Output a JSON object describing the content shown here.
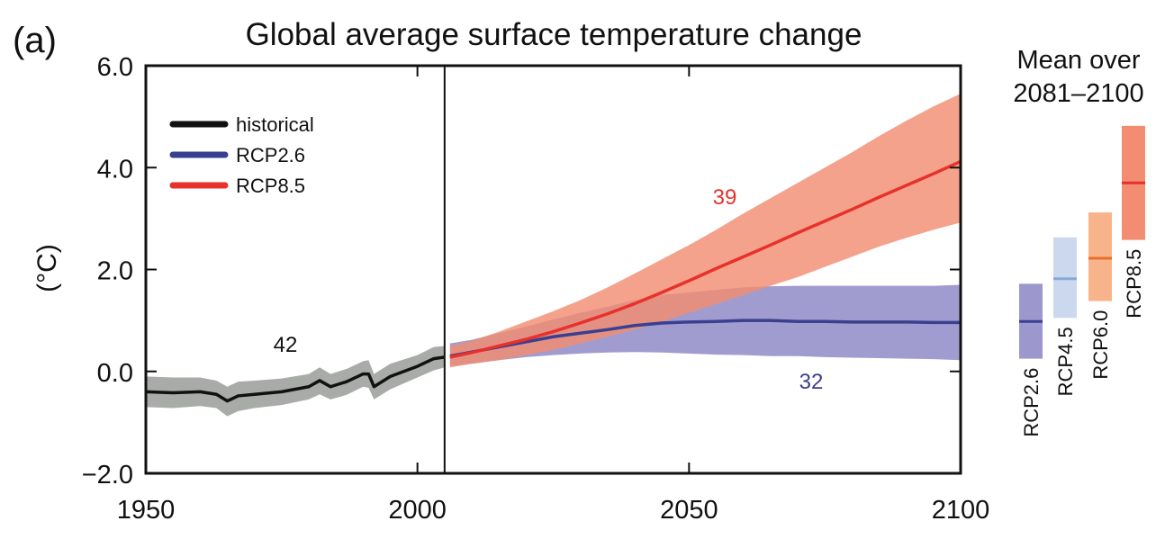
{
  "panel_label": "(a)",
  "chart_data": {
    "type": "line",
    "title": "Global average surface temperature change",
    "ylabel": "(°C)",
    "xlabel": "",
    "xlim": [
      1950,
      2100
    ],
    "ylim": [
      -2.0,
      6.0
    ],
    "x_ticks": [
      1950,
      2000,
      2050,
      2100
    ],
    "x_tick_labels": [
      "1950",
      "2000",
      "2050",
      "2100"
    ],
    "y_ticks": [
      -2.0,
      0.0,
      2.0,
      4.0,
      6.0
    ],
    "y_tick_labels": [
      "−2.0",
      "0.0",
      "2.0",
      "4.0",
      "6.0"
    ],
    "divider_year": 2005,
    "grid": false,
    "legend": {
      "placement": "top-left",
      "entries": [
        {
          "label": "historical",
          "color": "#111111"
        },
        {
          "label": "RCP2.6",
          "color": "#3b3f8f"
        },
        {
          "label": "RCP8.5",
          "color": "#e8312a"
        }
      ]
    },
    "series": [
      {
        "name": "historical",
        "color": "#111111",
        "band_color": "#a9aba9",
        "count_label": "42",
        "x": [
          1950,
          1955,
          1960,
          1963,
          1965,
          1967,
          1970,
          1975,
          1980,
          1982,
          1984,
          1987,
          1990,
          1991,
          1992,
          1995,
          2000,
          2003,
          2005
        ],
        "y": [
          -0.4,
          -0.42,
          -0.4,
          -0.45,
          -0.58,
          -0.48,
          -0.45,
          -0.4,
          -0.3,
          -0.18,
          -0.3,
          -0.2,
          -0.05,
          -0.05,
          -0.3,
          -0.1,
          0.1,
          0.25,
          0.28
        ],
        "lower": [
          -0.7,
          -0.72,
          -0.68,
          -0.72,
          -0.88,
          -0.78,
          -0.72,
          -0.66,
          -0.55,
          -0.45,
          -0.55,
          -0.46,
          -0.3,
          -0.32,
          -0.55,
          -0.35,
          -0.12,
          0.02,
          0.08
        ],
        "upper": [
          -0.1,
          -0.12,
          -0.12,
          -0.18,
          -0.3,
          -0.2,
          -0.18,
          -0.14,
          -0.05,
          0.08,
          -0.05,
          0.05,
          0.2,
          0.22,
          -0.05,
          0.15,
          0.32,
          0.48,
          0.5
        ]
      },
      {
        "name": "RCP2.6",
        "color": "#3b3f8f",
        "band_color": "#8c86c4",
        "count_label": "32",
        "x": [
          2006,
          2010,
          2015,
          2020,
          2025,
          2030,
          2035,
          2040,
          2045,
          2050,
          2055,
          2060,
          2065,
          2070,
          2075,
          2080,
          2085,
          2090,
          2095,
          2100
        ],
        "y": [
          0.3,
          0.38,
          0.48,
          0.58,
          0.68,
          0.75,
          0.82,
          0.9,
          0.95,
          0.97,
          0.98,
          1.0,
          1.0,
          0.98,
          0.98,
          0.97,
          0.97,
          0.97,
          0.96,
          0.96
        ],
        "lower": [
          0.1,
          0.15,
          0.22,
          0.28,
          0.32,
          0.35,
          0.37,
          0.38,
          0.37,
          0.35,
          0.33,
          0.32,
          0.3,
          0.3,
          0.28,
          0.27,
          0.26,
          0.25,
          0.24,
          0.22
        ],
        "upper": [
          0.55,
          0.62,
          0.75,
          0.88,
          1.02,
          1.15,
          1.27,
          1.4,
          1.5,
          1.55,
          1.6,
          1.65,
          1.67,
          1.68,
          1.68,
          1.68,
          1.68,
          1.68,
          1.68,
          1.7
        ]
      },
      {
        "name": "RCP8.5",
        "color": "#e8312a",
        "band_color": "#f28d72",
        "count_label": "39",
        "x": [
          2006,
          2010,
          2015,
          2020,
          2025,
          2030,
          2035,
          2040,
          2045,
          2050,
          2055,
          2060,
          2065,
          2070,
          2075,
          2080,
          2085,
          2090,
          2095,
          2100
        ],
        "y": [
          0.28,
          0.37,
          0.5,
          0.63,
          0.78,
          0.95,
          1.13,
          1.33,
          1.55,
          1.78,
          2.02,
          2.25,
          2.48,
          2.72,
          2.95,
          3.18,
          3.42,
          3.65,
          3.88,
          4.12
        ],
        "lower": [
          0.08,
          0.15,
          0.22,
          0.32,
          0.42,
          0.55,
          0.68,
          0.82,
          0.98,
          1.15,
          1.32,
          1.5,
          1.68,
          1.85,
          2.05,
          2.25,
          2.45,
          2.62,
          2.78,
          2.92
        ],
        "upper": [
          0.5,
          0.6,
          0.78,
          0.98,
          1.18,
          1.4,
          1.65,
          1.92,
          2.2,
          2.48,
          2.78,
          3.1,
          3.4,
          3.7,
          4.0,
          4.3,
          4.62,
          4.92,
          5.2,
          5.45
        ]
      }
    ],
    "side_panel": {
      "title_line1": "Mean over",
      "title_line2": "2081–2100",
      "bars": [
        {
          "label": "RCP2.6",
          "mean": 0.98,
          "low": 0.25,
          "high": 1.72,
          "mean_color": "#3b3f8f",
          "fill_color": "#9c97cc"
        },
        {
          "label": "RCP4.5",
          "mean": 1.82,
          "low": 1.05,
          "high": 2.63,
          "mean_color": "#86a9d6",
          "fill_color": "#cbd8ee"
        },
        {
          "label": "RCP6.0",
          "mean": 2.22,
          "low": 1.38,
          "high": 3.12,
          "mean_color": "#e8702a",
          "fill_color": "#f7b48a"
        },
        {
          "label": "RCP8.5",
          "mean": 3.7,
          "low": 2.58,
          "high": 4.82,
          "mean_color": "#e8312a",
          "fill_color": "#f28d72"
        }
      ]
    }
  }
}
